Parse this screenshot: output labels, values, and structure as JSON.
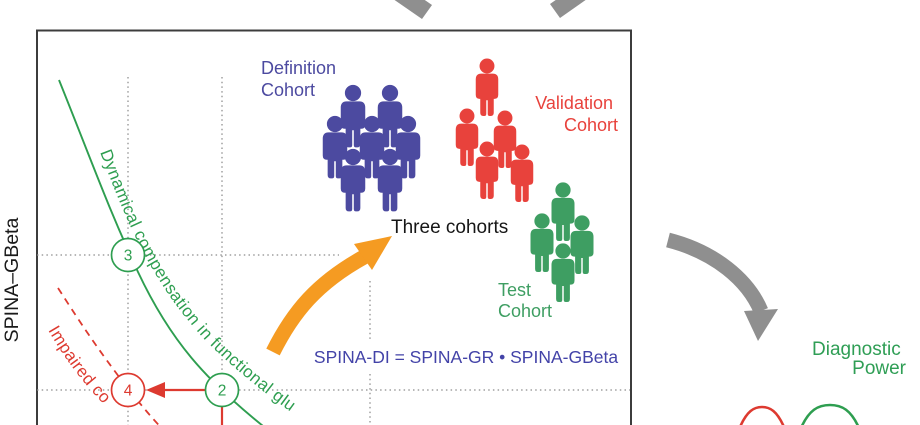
{
  "y_axis_label": "SPINA–GBeta",
  "plot": {
    "curve_green_label": "Dynamical compensation in functional glu",
    "curve_red_label": "Impaired co",
    "nodes": [
      {
        "label": "3"
      },
      {
        "label": "2"
      },
      {
        "label": "4"
      }
    ]
  },
  "annotations": {
    "three_cohorts": "Three cohorts",
    "equation": "SPINA-DI = SPINA-GR • SPINA-GBeta",
    "diagnostic_line1": "Diagnostic",
    "diagnostic_line2": "Power"
  },
  "cohorts": [
    {
      "id": "definition",
      "line1": "Definition",
      "line2": "Cohort",
      "color": "#4C4AA0",
      "count": 7,
      "scale": 0.98,
      "people": [
        [
          353,
          93
        ],
        [
          390,
          93
        ],
        [
          335,
          124
        ],
        [
          372,
          124
        ],
        [
          408,
          124
        ],
        [
          353,
          157
        ],
        [
          390,
          157
        ]
      ]
    },
    {
      "id": "validation",
      "line1": "Validation",
      "line2": "Cohort",
      "color": "#E8423C",
      "count": 5,
      "scale": 0.9,
      "people": [
        [
          487,
          66
        ],
        [
          467,
          116
        ],
        [
          505,
          118
        ],
        [
          487,
          149
        ],
        [
          522,
          152
        ]
      ]
    },
    {
      "id": "test",
      "line1": "Test",
      "line2": "Cohort",
      "color": "#3E9E62",
      "count": 4,
      "scale": 0.92,
      "people": [
        [
          563,
          190
        ],
        [
          542,
          221
        ],
        [
          582,
          223
        ],
        [
          563,
          251
        ]
      ]
    }
  ],
  "colors": {
    "green_curve": "#2E9E50",
    "red_curve": "#DD3A30",
    "node_green": "#2E9E50",
    "node_red": "#DD3A30",
    "orange_arrow": "#F59B22",
    "gray_arrow": "#8F8F8F",
    "equation_blue": "#4343A8",
    "diagnostic_green": "#2F9E55",
    "axis_text": "#1A1A1A",
    "grid_gray": "#8C8C8C",
    "border_gray": "#3C3C3C",
    "black_text": "#161616"
  }
}
